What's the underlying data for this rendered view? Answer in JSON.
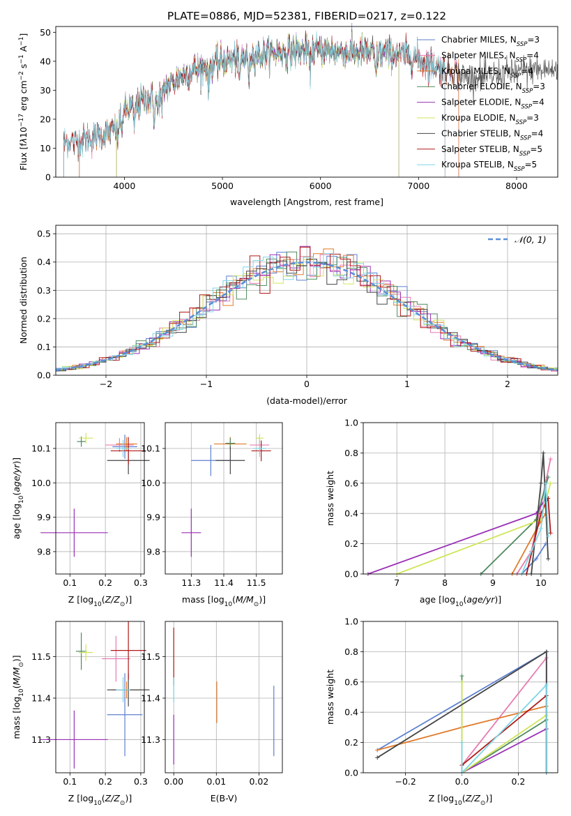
{
  "figure_title": "PLATE=0886, MJD=52381, FIBERID=0217, z=0.122",
  "models": [
    {
      "name": "Chabrier MILES, N$_{SSP}$=3",
      "label": "Chabrier MILES, N",
      "sub": "SSP",
      "n": "=3",
      "color": "#5b7fd0"
    },
    {
      "name": "Salpeter MILES, N$_{SSP}$=4",
      "label": "Salpeter MILES, N",
      "sub": "SSP",
      "n": "=4",
      "color": "#e87ab0"
    },
    {
      "name": "Kroupa MILES, N$_{SSP}$=4",
      "label": "Kroupa MILES, N",
      "sub": "SSP",
      "n": "=4",
      "color": "#e07a2a"
    },
    {
      "name": "Chabrier ELODIE, N$_{SSP}$=3",
      "label": "Chabrier ELODIE, N",
      "sub": "SSP",
      "n": "=3",
      "color": "#4f8a5f"
    },
    {
      "name": "Salpeter ELODIE, N$_{SSP}$=4",
      "label": "Salpeter ELODIE, N",
      "sub": "SSP",
      "n": "=4",
      "color": "#9a2fb5"
    },
    {
      "name": "Kroupa ELODIE, N$_{SSP}$=3",
      "label": "Kroupa ELODIE, N",
      "sub": "SSP",
      "n": "=3",
      "color": "#cfe65a"
    },
    {
      "name": "Chabrier STELIB, N$_{SSP}$=4",
      "label": "Chabrier STELIB, N",
      "sub": "SSP",
      "n": "=4",
      "color": "#444444"
    },
    {
      "name": "Salpeter STELIB, N$_{SSP}$=5",
      "label": "Salpeter STELIB, N",
      "sub": "SSP",
      "n": "=5",
      "color": "#b01818"
    },
    {
      "name": "Kroupa STELIB, N$_{SSP}$=5",
      "label": "Kroupa STELIB, N",
      "sub": "SSP",
      "n": "=5",
      "color": "#7fd6e4"
    }
  ],
  "chart_data": [
    {
      "id": "spectrum",
      "type": "line",
      "xlabel": "wavelength [Angstrom, rest frame]",
      "ylabel": "Flux [f_λ 10^-17 erg cm^-2 s^-1 A^-1]",
      "xlim": [
        3300,
        8420
      ],
      "ylim": [
        0,
        52
      ],
      "xticks": [
        4000,
        5000,
        6000,
        7000,
        8000
      ],
      "yticks": [
        0,
        10,
        20,
        30,
        40,
        50
      ],
      "grid": false,
      "legend": "top-right",
      "continuum": [
        [
          3380,
          12
        ],
        [
          3600,
          13
        ],
        [
          3800,
          15
        ],
        [
          3900,
          16
        ],
        [
          3950,
          22
        ],
        [
          4100,
          25
        ],
        [
          4300,
          28
        ],
        [
          4500,
          33
        ],
        [
          4700,
          37
        ],
        [
          5000,
          40
        ],
        [
          5300,
          42
        ],
        [
          5600,
          43
        ],
        [
          5900,
          44
        ],
        [
          6300,
          43
        ],
        [
          6600,
          43
        ],
        [
          6900,
          42
        ],
        [
          7200,
          38
        ],
        [
          7400,
          36
        ],
        [
          7600,
          34
        ],
        [
          7900,
          36
        ],
        [
          8200,
          37
        ]
      ],
      "absorption_lines": [
        3934,
        3969,
        4101,
        4304,
        4340,
        4383,
        4861,
        5175,
        5270,
        5893,
        6563
      ],
      "model_extents": [
        {
          "model": "Chabrier MILES",
          "x_range": [
            3540,
            7410
          ]
        },
        {
          "model": "Salpeter MILES",
          "x_range": [
            3540,
            7410
          ]
        },
        {
          "model": "Kroupa MILES",
          "x_range": [
            3540,
            7410
          ]
        },
        {
          "model": "Chabrier ELODIE",
          "x_range": [
            3920,
            6800
          ]
        },
        {
          "model": "Salpeter ELODIE",
          "x_range": [
            3920,
            6800
          ]
        },
        {
          "model": "Kroupa ELODIE",
          "x_range": [
            3920,
            6800
          ]
        },
        {
          "model": "Chabrier STELIB",
          "x_range": [
            3380,
            8420
          ]
        },
        {
          "model": "Salpeter STELIB",
          "x_range": [
            3380,
            7270
          ]
        },
        {
          "model": "Kroupa STELIB",
          "x_range": [
            3380,
            7270
          ]
        }
      ]
    },
    {
      "id": "residuals",
      "type": "line",
      "xlabel": "(data-model)/error",
      "ylabel": "Normed distribution",
      "xlim": [
        -2.5,
        2.5
      ],
      "ylim": [
        0,
        0.53
      ],
      "xticks": [
        -2,
        -1,
        0,
        1,
        2
      ],
      "yticks": [
        0.0,
        0.1,
        0.2,
        0.3,
        0.4,
        0.5
      ],
      "grid": true,
      "legend": "top-right",
      "reference": {
        "label": "𝒩(0, 1)",
        "mean": 0,
        "sigma": 1,
        "color": "#5b8fd6"
      },
      "bin_width": 0.1
    },
    {
      "id": "age_vs_Z",
      "type": "scatter",
      "xlabel": "Z [log10(Z/Z⊙)]",
      "ylabel": "age  [log10(age/yr)]",
      "xlim": [
        0.06,
        0.31
      ],
      "ylim": [
        9.735,
        10.175
      ],
      "xticks": [
        0.1,
        0.2,
        0.3
      ],
      "yticks": [
        9.8,
        9.9,
        10.0,
        10.1
      ],
      "grid": true,
      "points": [
        {
          "model": "Chabrier MILES",
          "x": 0.255,
          "y": 10.105,
          "xerr": 0.035,
          "yerr": 0.035
        },
        {
          "model": "Salpeter MILES",
          "x": 0.24,
          "y": 10.11,
          "xerr": 0.04,
          "yerr": 0.02
        },
        {
          "model": "Kroupa MILES",
          "x": 0.26,
          "y": 10.113,
          "xerr": 0.03,
          "yerr": 0.02
        },
        {
          "model": "Chabrier ELODIE",
          "x": 0.132,
          "y": 10.12,
          "xerr": 0.012,
          "yerr": 0.015
        },
        {
          "model": "Salpeter ELODIE",
          "x": 0.112,
          "y": 9.855,
          "xerr": 0.095,
          "yerr": 0.07
        },
        {
          "model": "Kroupa ELODIE",
          "x": 0.145,
          "y": 10.13,
          "xerr": 0.02,
          "yerr": 0.015
        },
        {
          "model": "Chabrier STELIB",
          "x": 0.265,
          "y": 10.065,
          "xerr": 0.06,
          "yerr": 0.04
        },
        {
          "model": "Salpeter STELIB",
          "x": 0.265,
          "y": 10.093,
          "xerr": 0.05,
          "yerr": 0.04
        },
        {
          "model": "Kroupa STELIB",
          "x": 0.25,
          "y": 10.1,
          "xerr": 0.02,
          "yerr": 0.025
        }
      ]
    },
    {
      "id": "age_vs_mass",
      "type": "scatter",
      "xlabel": "mass [log10(M/M⊙)]",
      "ylabel": "",
      "xlim": [
        11.22,
        11.58
      ],
      "ylim": [
        9.735,
        10.175
      ],
      "xticks": [
        11.3,
        11.4,
        11.5
      ],
      "yticks": [
        9.8,
        9.9,
        10.0,
        10.1
      ],
      "grid": true,
      "points": [
        {
          "model": "Chabrier MILES",
          "x": 11.36,
          "y": 10.065,
          "xerr": 0.06,
          "yerr": 0.045
        },
        {
          "model": "Salpeter MILES",
          "x": 11.51,
          "y": 10.11,
          "xerr": 0.03,
          "yerr": 0.025
        },
        {
          "model": "Kroupa MILES",
          "x": 11.42,
          "y": 10.113,
          "xerr": 0.05,
          "yerr": 0.02
        },
        {
          "model": "Chabrier ELODIE",
          "x": 11.42,
          "y": 10.115,
          "xerr": 0.015,
          "yerr": 0.015
        },
        {
          "model": "Salpeter ELODIE",
          "x": 11.3,
          "y": 9.855,
          "xerr": 0.03,
          "yerr": 0.07
        },
        {
          "model": "Kroupa ELODIE",
          "x": 11.51,
          "y": 10.13,
          "xerr": 0.012,
          "yerr": 0.012
        },
        {
          "model": "Chabrier STELIB",
          "x": 11.42,
          "y": 10.065,
          "xerr": 0.045,
          "yerr": 0.04
        },
        {
          "model": "Salpeter STELIB",
          "x": 11.515,
          "y": 10.093,
          "xerr": 0.03,
          "yerr": 0.03
        },
        {
          "model": "Kroupa STELIB",
          "x": 11.51,
          "y": 10.1,
          "xerr": 0.02,
          "yerr": 0.025
        }
      ]
    },
    {
      "id": "mass_weight_vs_age",
      "type": "line",
      "xlabel": "age  [log10(age/yr)]",
      "ylabel": "mass weight",
      "xlim": [
        6.3,
        10.35
      ],
      "ylim": [
        0,
        1.0
      ],
      "xticks": [
        7,
        8,
        9,
        10
      ],
      "yticks": [
        0.0,
        0.2,
        0.4,
        0.6,
        0.8,
        1.0
      ],
      "grid": true,
      "series": [
        {
          "model": "Chabrier MILES",
          "points": [
            [
              9.6,
              0.0
            ],
            [
              9.9,
              0.1
            ],
            [
              10.1,
              0.2
            ]
          ]
        },
        {
          "model": "Salpeter MILES",
          "points": [
            [
              9.5,
              0.0
            ],
            [
              9.8,
              0.15
            ],
            [
              10.2,
              0.76
            ]
          ]
        },
        {
          "model": "Kroupa MILES",
          "points": [
            [
              9.4,
              0.0
            ],
            [
              10.0,
              0.35
            ],
            [
              10.1,
              0.4
            ]
          ]
        },
        {
          "model": "Chabrier ELODIE",
          "points": [
            [
              8.75,
              0.0
            ],
            [
              9.9,
              0.36
            ],
            [
              10.15,
              0.64
            ]
          ]
        },
        {
          "model": "Salpeter ELODIE",
          "points": [
            [
              6.4,
              0.0
            ],
            [
              9.9,
              0.4
            ],
            [
              10.1,
              0.5
            ]
          ]
        },
        {
          "model": "Kroupa ELODIE",
          "points": [
            [
              7.0,
              0.0
            ],
            [
              10.0,
              0.36
            ],
            [
              10.2,
              0.6
            ]
          ]
        },
        {
          "model": "Chabrier STELIB",
          "points": [
            [
              9.8,
              0.0
            ],
            [
              10.0,
              0.6
            ],
            [
              10.05,
              0.8
            ],
            [
              10.15,
              0.1
            ]
          ]
        },
        {
          "model": "Salpeter STELIB",
          "points": [
            [
              9.7,
              0.0
            ],
            [
              10.0,
              0.4
            ],
            [
              10.15,
              0.5
            ],
            [
              10.2,
              0.27
            ]
          ]
        },
        {
          "model": "Kroupa STELIB",
          "points": [
            [
              9.6,
              0.0
            ],
            [
              10.0,
              0.3
            ],
            [
              10.1,
              0.6
            ],
            [
              10.15,
              0.25
            ]
          ]
        }
      ]
    },
    {
      "id": "mass_vs_Z",
      "type": "scatter",
      "xlabel": "Z [log10(Z/Z⊙)]",
      "ylabel": "mass [log10(M/M⊙)]",
      "xlim": [
        0.06,
        0.31
      ],
      "ylim": [
        11.22,
        11.585
      ],
      "xticks": [
        0.1,
        0.2,
        0.3
      ],
      "yticks": [
        11.3,
        11.4,
        11.5
      ],
      "grid": true,
      "points": [
        {
          "model": "Chabrier MILES",
          "x": 0.255,
          "y": 11.36,
          "xerr": 0.05,
          "yerr": 0.1
        },
        {
          "model": "Salpeter MILES",
          "x": 0.23,
          "y": 11.495,
          "xerr": 0.04,
          "yerr": 0.055
        },
        {
          "model": "Kroupa MILES",
          "x": 0.26,
          "y": 11.42,
          "xerr": 0.04,
          "yerr": 0.02
        },
        {
          "model": "Chabrier ELODIE",
          "x": 0.132,
          "y": 11.513,
          "xerr": 0.015,
          "yerr": 0.045
        },
        {
          "model": "Salpeter ELODIE",
          "x": 0.112,
          "y": 11.3,
          "xerr": 0.095,
          "yerr": 0.07
        },
        {
          "model": "Kroupa ELODIE",
          "x": 0.145,
          "y": 11.51,
          "xerr": 0.02,
          "yerr": 0.02
        },
        {
          "model": "Chabrier STELIB",
          "x": 0.265,
          "y": 11.42,
          "xerr": 0.06,
          "yerr": 0.04
        },
        {
          "model": "Salpeter STELIB",
          "x": 0.265,
          "y": 11.515,
          "xerr": 0.05,
          "yerr": 0.07
        },
        {
          "model": "Kroupa STELIB",
          "x": 0.25,
          "y": 11.42,
          "xerr": 0.02,
          "yerr": 0.03
        }
      ]
    },
    {
      "id": "mass_vs_ebv",
      "type": "scatter",
      "xlabel": "E(B-V)",
      "ylabel": "",
      "xlim": [
        -0.002,
        0.0255
      ],
      "ylim": [
        11.22,
        11.585
      ],
      "xticks": [
        0.0,
        0.01,
        0.02
      ],
      "yticks": [
        11.3,
        11.4,
        11.5
      ],
      "grid": true,
      "points": [
        {
          "model": "Chabrier MILES",
          "x": 0.0235,
          "y": 11.345,
          "xerr": 0,
          "yerr": 0.085
        },
        {
          "model": "Kroupa MILES",
          "x": 0.0101,
          "y": 11.39,
          "xerr": 0,
          "yerr": 0.05
        },
        {
          "model": "Salpeter ELODIE",
          "x": 0.0,
          "y": 11.3,
          "xerr": 0,
          "yerr": 0.06
        },
        {
          "model": "Salpeter STELIB",
          "x": 0.0,
          "y": 11.5,
          "xerr": 0,
          "yerr": 0.07
        },
        {
          "model": "Kroupa STELIB",
          "x": 0.0,
          "y": 11.42,
          "xerr": 0,
          "yerr": 0.03
        }
      ]
    },
    {
      "id": "mass_weight_vs_Z",
      "type": "line",
      "xlabel": "Z [log10(Z/Z⊙)]",
      "ylabel": "mass weight",
      "xlim": [
        -0.35,
        0.34
      ],
      "ylim": [
        0,
        1.0
      ],
      "xticks": [
        -0.2,
        0.0,
        0.2
      ],
      "yticks": [
        0.0,
        0.2,
        0.4,
        0.6,
        0.8,
        1.0
      ],
      "grid": true,
      "series": [
        {
          "model": "Chabrier MILES",
          "points": [
            [
              -0.3,
              0.15
            ],
            [
              0.3,
              0.8
            ],
            [
              0.3,
              0.0
            ]
          ]
        },
        {
          "model": "Salpeter MILES",
          "points": [
            [
              0.0,
              0.05
            ],
            [
              0.3,
              0.76
            ],
            [
              0.3,
              0.0
            ]
          ]
        },
        {
          "model": "Kroupa MILES",
          "points": [
            [
              -0.3,
              0.15
            ],
            [
              0.0,
              0.3
            ],
            [
              0.3,
              0.44
            ]
          ]
        },
        {
          "model": "Chabrier ELODIE",
          "points": [
            [
              0.0,
              0.64
            ],
            [
              0.0,
              0.0
            ],
            [
              0.3,
              0.35
            ],
            [
              0.3,
              0.0
            ]
          ]
        },
        {
          "model": "Salpeter ELODIE",
          "points": [
            [
              0.0,
              0.0
            ],
            [
              0.3,
              0.29
            ],
            [
              0.3,
              0.0
            ]
          ]
        },
        {
          "model": "Kroupa ELODIE",
          "points": [
            [
              0.0,
              0.6
            ],
            [
              0.0,
              0.0
            ],
            [
              0.3,
              0.38
            ],
            [
              0.3,
              0.0
            ]
          ]
        },
        {
          "model": "Chabrier STELIB",
          "points": [
            [
              -0.3,
              0.1
            ],
            [
              0.3,
              0.8
            ],
            [
              0.3,
              0.0
            ]
          ]
        },
        {
          "model": "Salpeter STELIB",
          "points": [
            [
              0.0,
              0.0
            ],
            [
              0.0,
              0.05
            ],
            [
              0.3,
              0.51
            ],
            [
              0.3,
              0.0
            ]
          ]
        },
        {
          "model": "Kroupa STELIB",
          "points": [
            [
              0.0,
              0.2
            ],
            [
              0.0,
              0.0
            ],
            [
              0.3,
              0.58
            ],
            [
              0.3,
              0.0
            ]
          ]
        }
      ]
    }
  ]
}
